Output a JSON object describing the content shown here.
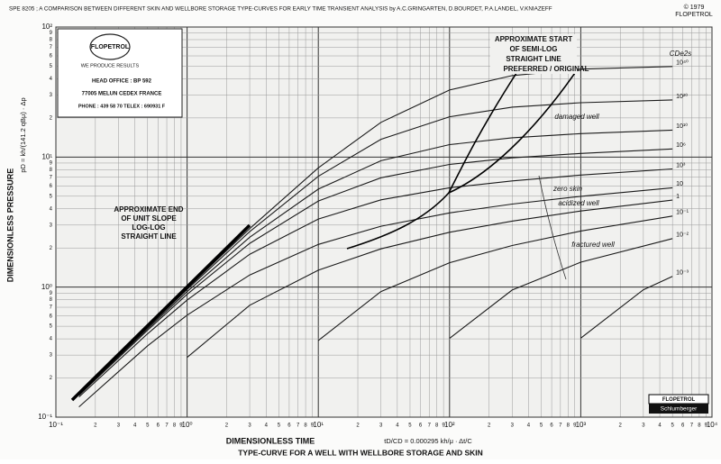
{
  "chart_data": {
    "type": "line",
    "title": "SPE 8205 ; A COMPARISON BETWEEN DIFFERENT SKIN AND WELLBORE STORAGE TYPE-CURVES FOR EARLY TIME TRANSIENT ANALYSIS by A.C.GRINGARTEN, D.BOURDET, P.A.LANDEL, V.KNIAZEFF",
    "copyright": [
      "© 1979",
      "FLOPETROL"
    ],
    "x_label": "DIMENSIONLESS TIME",
    "x_formula": "tD/CD = 0.000295 kh/μ · Δt/C",
    "subtitle": "TYPE-CURVE FOR A WELL WITH WELLBORE STORAGE AND SKIN",
    "y_label": "DIMENSIONLESS PRESSURE",
    "y_formula": "pD = kh/(141.2 qBμ) · Δp",
    "series_header": "CDe2s",
    "log_x": true,
    "log_y": true,
    "grid": true,
    "xlim": [
      0.1,
      10000
    ],
    "ylim": [
      0.1,
      100
    ],
    "xticks": [
      {
        "value": 0.1,
        "label": "10⁻¹"
      },
      {
        "value": 0.2,
        "label": "2"
      },
      {
        "value": 0.3,
        "label": "3"
      },
      {
        "value": 0.4,
        "label": "4"
      },
      {
        "value": 0.5,
        "label": "5"
      },
      {
        "value": 0.6,
        "label": "6"
      },
      {
        "value": 0.7,
        "label": "7"
      },
      {
        "value": 0.8,
        "label": "8"
      },
      {
        "value": 0.9,
        "label": "9"
      },
      {
        "value": 1,
        "label": "10⁰"
      },
      2,
      3,
      4,
      5,
      6,
      7,
      8,
      9,
      {
        "value": 10,
        "label": "10¹"
      },
      {
        "value": 20,
        "label": "2"
      },
      {
        "value": 30,
        "label": "3"
      },
      {
        "value": 40,
        "label": "4"
      },
      {
        "value": 50,
        "label": "5"
      },
      {
        "value": 60,
        "label": "6"
      },
      {
        "value": 70,
        "label": "7"
      },
      {
        "value": 80,
        "label": "8"
      },
      {
        "value": 90,
        "label": "9"
      },
      {
        "value": 100,
        "label": "10²"
      },
      {
        "value": 200,
        "label": "2"
      },
      {
        "value": 300,
        "label": "3"
      },
      {
        "value": 400,
        "label": "4"
      },
      {
        "value": 500,
        "label": "5"
      },
      {
        "value": 600,
        "label": "6"
      },
      {
        "value": 700,
        "label": "7"
      },
      {
        "value": 800,
        "label": "8"
      },
      {
        "value": 900,
        "label": "9"
      },
      {
        "value": 1000,
        "label": "10³"
      },
      {
        "value": 2000,
        "label": "2"
      },
      {
        "value": 3000,
        "label": "3"
      },
      {
        "value": 4000,
        "label": "4"
      },
      {
        "value": 5000,
        "label": "5"
      },
      {
        "value": 6000,
        "label": "6"
      },
      {
        "value": 7000,
        "label": "7"
      },
      {
        "value": 8000,
        "label": "8"
      },
      {
        "value": 9000,
        "label": "9"
      },
      {
        "value": 10000,
        "label": "10⁴"
      }
    ],
    "yticks": [
      {
        "value": 0.1,
        "label": "10⁻¹"
      },
      {
        "value": 0.2,
        "label": "2"
      },
      {
        "value": 0.3,
        "label": "3"
      },
      {
        "value": 0.4,
        "label": "4"
      },
      {
        "value": 0.5,
        "label": "5"
      },
      {
        "value": 0.6,
        "label": "6"
      },
      {
        "value": 0.7,
        "label": "7"
      },
      {
        "value": 0.8,
        "label": "8"
      },
      {
        "value": 0.9,
        "label": "9"
      },
      {
        "value": 1,
        "label": "10⁰"
      },
      2,
      3,
      4,
      5,
      6,
      7,
      8,
      9,
      {
        "value": 10,
        "label": "10¹"
      },
      {
        "value": 20,
        "label": "2"
      },
      {
        "value": 30,
        "label": "3"
      },
      {
        "value": 40,
        "label": "4"
      },
      {
        "value": 50,
        "label": "5"
      },
      {
        "value": 60,
        "label": "6"
      },
      {
        "value": 70,
        "label": "7"
      },
      {
        "value": 80,
        "label": "8"
      },
      {
        "value": 90,
        "label": "9"
      },
      {
        "value": 100,
        "label": "10²"
      }
    ],
    "series": [
      {
        "name": "10⁴⁰",
        "color": "#1a1a1a",
        "x": [
          0.15,
          0.5,
          1,
          3,
          10,
          30,
          100,
          300,
          1000,
          5000
        ],
        "values": [
          0.15,
          0.495,
          0.979,
          2.82,
          8.26,
          18.5,
          32.8,
          42.3,
          47.5,
          49.7
        ]
      },
      {
        "name": "10²⁰",
        "color": "#1a1a1a",
        "x": [
          0.15,
          0.5,
          1,
          3,
          10,
          30,
          100,
          300,
          1000,
          5000
        ],
        "values": [
          0.149,
          0.49,
          0.959,
          2.67,
          7.11,
          13.7,
          20.4,
          24.2,
          26.2,
          27.5
        ]
      },
      {
        "name": "10¹⁰",
        "color": "#1a1a1a",
        "x": [
          0.15,
          0.5,
          1,
          3,
          10,
          30,
          100,
          300,
          1000,
          5000
        ],
        "values": [
          0.148,
          0.479,
          0.923,
          2.42,
          5.67,
          9.37,
          12.46,
          14.07,
          15.15,
          16.13
        ]
      },
      {
        "name": "10⁶",
        "color": "#1a1a1a",
        "x": [
          0.15,
          0.5,
          1,
          3,
          10,
          30,
          100,
          300,
          1000,
          5000
        ],
        "values": [
          0.147,
          0.466,
          0.88,
          2.17,
          4.59,
          6.93,
          8.78,
          9.87,
          10.66,
          11.55
        ]
      },
      {
        "name": "10³",
        "color": "#1a1a1a",
        "x": [
          0.15,
          0.5,
          1,
          3,
          10,
          30,
          100,
          300,
          1000,
          5000
        ],
        "values": [
          0.143,
          0.438,
          0.794,
          1.79,
          3.34,
          4.69,
          5.81,
          6.56,
          7.27,
          8.11
        ]
      },
      {
        "name": "10",
        "color": "#1a1a1a",
        "x": [
          0.15,
          0.5,
          1,
          3,
          10,
          30,
          100,
          300,
          1000,
          5000
        ],
        "values": [
          0.12,
          0.354,
          0.609,
          1.24,
          2.13,
          2.94,
          3.72,
          4.35,
          4.99,
          5.81
        ]
      },
      {
        "name": "1",
        "color": "#1a1a1a",
        "x": [
          1,
          3,
          10,
          30,
          100,
          300,
          1000,
          5000
        ],
        "values": [
          0.288,
          0.725,
          1.35,
          1.97,
          2.64,
          3.22,
          3.85,
          4.67
        ]
      },
      {
        "name": "10⁻¹",
        "color": "#1a1a1a",
        "x": [
          10,
          30,
          100,
          300,
          1000,
          5000
        ],
        "values": [
          0.389,
          0.925,
          1.54,
          2.09,
          2.7,
          3.52
        ]
      },
      {
        "name": "10⁻²",
        "color": "#1a1a1a",
        "x": [
          100,
          300,
          1000,
          5000
        ],
        "values": [
          0.403,
          0.95,
          1.555,
          2.36
        ]
      },
      {
        "name": "10⁻³",
        "color": "#1a1a1a",
        "x": [
          1000,
          3000,
          5000
        ],
        "values": [
          0.405,
          0.955,
          1.21
        ]
      }
    ],
    "annotations": [
      "APPROXIMATE END",
      "OF UNIT SLOPE",
      "LOG-LOG",
      "STRAIGHT LINE",
      "APPROXIMATE START",
      "OF SEMI-LOG",
      "STRAIGHT LINE",
      "PREFERRED / ORIGINAL",
      "damaged well",
      "zero skin",
      "acidized well",
      "fractured well"
    ],
    "logo": {
      "name": "FLOPETROL",
      "slogan": "WE PRODUCE RESULTS",
      "lines": [
        "HEAD OFFICE : BP 592",
        "77005 MELUN CEDEX FRANCE",
        "PHONE : 439 58 70   TELEX : 690931 F"
      ]
    },
    "badge": [
      "FLOPETROL",
      "Schlumberger"
    ]
  }
}
